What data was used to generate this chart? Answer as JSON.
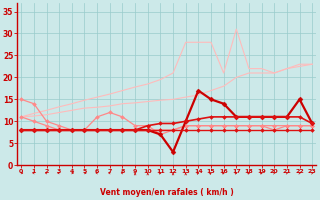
{
  "x": [
    0,
    1,
    2,
    3,
    4,
    5,
    6,
    7,
    8,
    9,
    10,
    11,
    12,
    13,
    14,
    15,
    16,
    17,
    18,
    19,
    20,
    21,
    22,
    23
  ],
  "series": [
    {
      "label": "light_upper1",
      "color": "#ffbbbb",
      "lw": 0.8,
      "marker": null,
      "y": [
        11,
        11.8,
        12.5,
        13.3,
        14,
        14.8,
        15.5,
        16.2,
        17,
        17.8,
        18.5,
        19.5,
        21,
        28,
        28,
        28,
        21,
        31,
        22,
        22,
        21,
        22,
        23,
        23
      ]
    },
    {
      "label": "light_upper2",
      "color": "#ffbbbb",
      "lw": 0.8,
      "marker": null,
      "y": [
        11,
        11.2,
        11.5,
        12,
        12.5,
        13,
        13.2,
        13.5,
        14,
        14.2,
        14.5,
        14.8,
        15,
        15.5,
        16,
        17,
        18,
        20,
        21,
        21,
        21,
        22,
        22.5,
        23
      ]
    },
    {
      "label": "pink_markers1",
      "color": "#ff8888",
      "lw": 0.9,
      "marker": "D",
      "ms": 2.0,
      "y": [
        15,
        14,
        10,
        9,
        8,
        8,
        11,
        12,
        11,
        9,
        9,
        7,
        8,
        9,
        9,
        9,
        9,
        9,
        9,
        9,
        8,
        9,
        9,
        9
      ]
    },
    {
      "label": "pink_markers2",
      "color": "#ff8888",
      "lw": 0.9,
      "marker": "D",
      "ms": 2.0,
      "y": [
        11,
        10,
        9,
        8,
        8,
        8,
        8,
        8,
        8,
        8,
        8,
        8,
        8,
        9,
        9,
        9,
        9,
        9,
        9,
        9,
        9,
        9,
        9,
        9
      ]
    },
    {
      "label": "red_main",
      "color": "#cc0000",
      "lw": 1.6,
      "marker": "D",
      "ms": 2.5,
      "y": [
        8,
        8,
        8,
        8,
        8,
        8,
        8,
        8,
        8,
        8,
        8,
        7,
        3,
        10,
        17,
        15,
        14,
        11,
        11,
        11,
        11,
        11,
        15,
        9.5
      ]
    },
    {
      "label": "red_flat1",
      "color": "#dd1111",
      "lw": 1.2,
      "marker": "D",
      "ms": 2.0,
      "y": [
        8,
        8,
        8,
        8,
        8,
        8,
        8,
        8,
        8,
        8,
        9,
        9.5,
        9.5,
        10,
        10.5,
        11,
        11,
        11,
        11,
        11,
        11,
        11,
        11,
        9.5
      ]
    },
    {
      "label": "red_flat2",
      "color": "#dd1111",
      "lw": 1.0,
      "marker": "D",
      "ms": 2.0,
      "y": [
        8,
        8,
        8,
        8,
        8,
        8,
        8,
        8,
        8,
        8,
        8,
        8,
        8,
        8,
        8,
        8,
        8,
        8,
        8,
        8,
        8,
        8,
        8,
        8
      ]
    }
  ],
  "wind_arrows": [
    [
      0.0,
      0.0
    ],
    [
      -0.15,
      0.15
    ],
    [
      -0.1,
      0.1
    ],
    [
      -0.15,
      0.1
    ],
    [
      0.0,
      0.0
    ],
    [
      0.0,
      0.0
    ],
    [
      -0.1,
      0.1
    ],
    [
      -0.15,
      0.15
    ],
    [
      -0.15,
      0.15
    ],
    [
      0.0,
      0.1
    ],
    [
      0.0,
      0.15
    ],
    [
      0.1,
      0.2
    ],
    [
      0.0,
      0.1
    ],
    [
      0.0,
      0.15
    ],
    [
      0.05,
      0.15
    ],
    [
      0.05,
      0.2
    ],
    [
      0.1,
      0.2
    ],
    [
      0.1,
      0.2
    ],
    [
      0.1,
      0.2
    ],
    [
      0.1,
      0.2
    ],
    [
      0.15,
      0.25
    ],
    [
      0.15,
      0.25
    ],
    [
      0.15,
      0.25
    ],
    [
      0.15,
      0.25
    ]
  ],
  "bg_color": "#cce9e9",
  "grid_color": "#99cccc",
  "xlabel": "Vent moyen/en rafales ( km/h )",
  "xlabel_color": "#cc0000",
  "tick_color": "#cc0000",
  "axis_color": "#cc0000",
  "xlim": [
    -0.3,
    23.3
  ],
  "ylim": [
    0,
    37
  ],
  "yticks": [
    0,
    5,
    10,
    15,
    20,
    25,
    30,
    35
  ],
  "xticks": [
    0,
    1,
    2,
    3,
    4,
    5,
    6,
    7,
    8,
    9,
    10,
    11,
    12,
    13,
    14,
    15,
    16,
    17,
    18,
    19,
    20,
    21,
    22,
    23
  ],
  "figsize": [
    3.2,
    2.0
  ],
  "dpi": 100
}
